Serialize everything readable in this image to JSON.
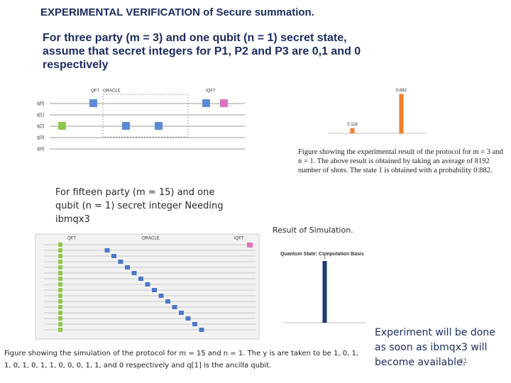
{
  "title": "EXPERIMENTAL VERIFICATION of Secure summation.",
  "intro": "For three party (m = 3) and one qubit (n = 1) secret state, assume that secret integers for P1, P2 and P3 are 0,1 and 0 respectively",
  "circuit1": {
    "qubits": [
      "q[0]",
      "q[1]",
      "q[2]",
      "q[3]",
      "q[4]"
    ],
    "blocks": [
      "QFT",
      "ORACLE",
      "IQFT"
    ]
  },
  "chart_data": [
    {
      "type": "bar",
      "categories": [
        null,
        null
      ],
      "values": [
        0.118,
        0.882
      ],
      "color": "#f07f2a",
      "ylim": [
        0,
        1
      ]
    },
    {
      "type": "bar",
      "title": "Quantum State: Computation Basis",
      "categories": [
        null
      ],
      "values": [
        1
      ],
      "color": "#1f3a6e",
      "ylim": [
        0,
        1
      ]
    }
  ],
  "caption1": "Figure showing the experimental result of the protocol for m = 3 and n = 1. The above result is obtained by taking an average of 8192 number of shots. The state 1 is obtained with a probability 0:882.",
  "fifteen": "For fifteen party (m = 15) and one qubit (n = 1) secret integer Needing ibmqx3",
  "sim_heading": "Result of Simulation.",
  "circuit2": {
    "blocks": [
      "QFT",
      "ORACLE",
      "IQFT"
    ]
  },
  "caption2": "Figure showing the simulation of the protocol for m = 15 and n = 1. The y is are taken to be 1, 0, 1, 1, 0, 1, 0, 1, 1, 0, 0, 0, 1, 1, and 0 respectively and q[1] is the ancilla qubit.",
  "note": "Experiment will be done as soon as ibmqx3 will become available.",
  "page_number": "11"
}
